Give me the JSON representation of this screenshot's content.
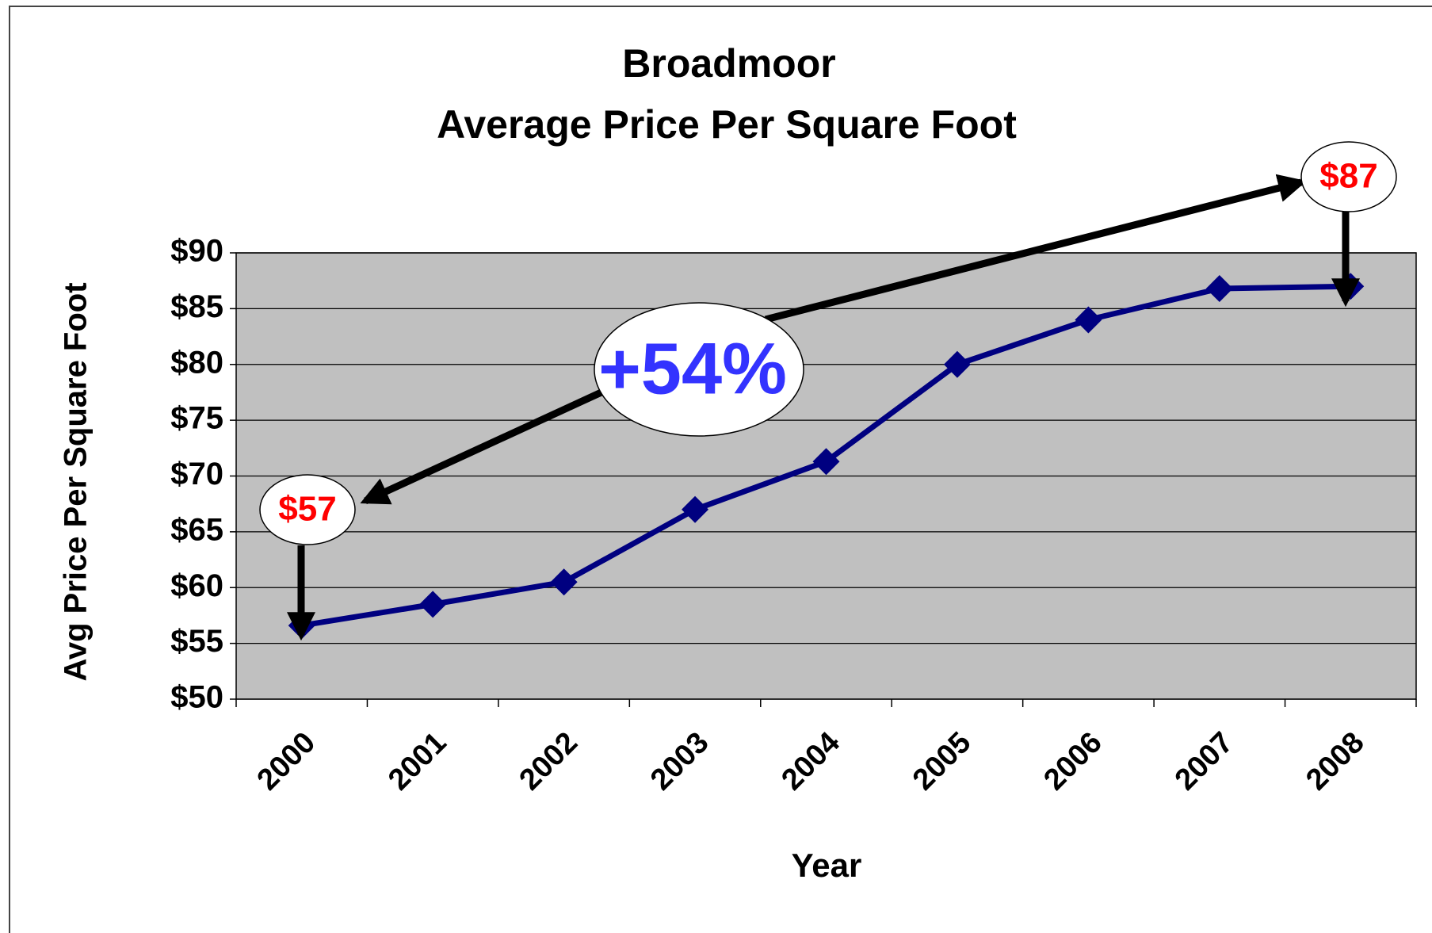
{
  "chart_data": {
    "type": "line",
    "title": "Broadmoor",
    "subtitle": "Average Price Per Square Foot",
    "y_label": "Avg Price Per Square Foot",
    "x_label": "Year",
    "categories": [
      "2000",
      "2001",
      "2002",
      "2003",
      "2004",
      "2005",
      "2006",
      "2007",
      "2008"
    ],
    "series": [
      {
        "name": "Avg Price Per Square Foot",
        "color": "#000080",
        "values": [
          56.6,
          58.5,
          60.5,
          67,
          71.3,
          80,
          84,
          86.8,
          87
        ]
      }
    ],
    "ylim": [
      50,
      90
    ],
    "yticks": [
      {
        "value": 50,
        "label": "$50"
      },
      {
        "value": 55,
        "label": "$55"
      },
      {
        "value": 60,
        "label": "$60"
      },
      {
        "value": 65,
        "label": "$65"
      },
      {
        "value": 70,
        "label": "$70"
      },
      {
        "value": 75,
        "label": "$75"
      },
      {
        "value": 80,
        "label": "$80"
      },
      {
        "value": 85,
        "label": "$85"
      },
      {
        "value": 90,
        "label": "$90"
      }
    ],
    "grid": true,
    "plot_background": "#c0c0c0",
    "annotations": [
      "$57",
      "$87",
      "+54%"
    ]
  }
}
